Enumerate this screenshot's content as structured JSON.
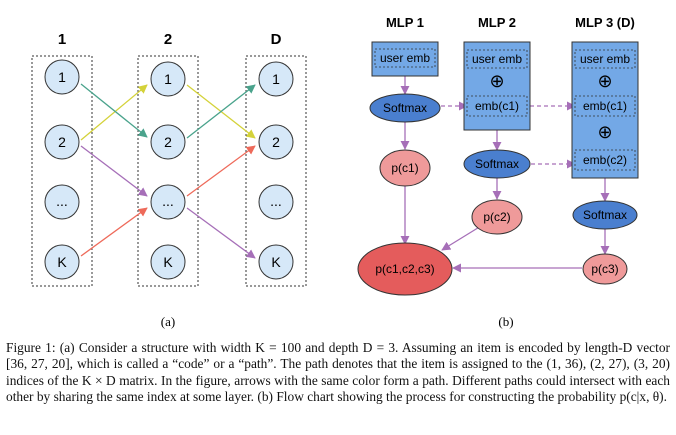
{
  "panel_a": {
    "columns": [
      "1",
      "2",
      "D"
    ],
    "nodes": [
      "1",
      "2",
      "...",
      "K"
    ],
    "sublabel": "(a)"
  },
  "panel_b": {
    "headers": [
      "MLP 1",
      "MLP 2",
      "MLP 3 (D)"
    ],
    "user_emb": "user emb",
    "emb_c1": "emb(c1)",
    "emb_c2": "emb(c2)",
    "oplus": "⊕",
    "softmax": "Softmax",
    "p_c1": "p(c1)",
    "p_c2": "p(c2)",
    "p_c3": "p(c3)",
    "p_joint": "p(c1,c2,c3)",
    "sublabel": "(b)"
  },
  "colors": {
    "node_fill": "#d6e8f8",
    "mlp_fill": "#73a8e6",
    "softmax_fill": "#4a7fcf",
    "prob_fill": "#ef9a9a",
    "joint_fill": "#e45c5c",
    "flow": "#a66fb8",
    "path_yellow": "#d4d23a",
    "path_teal": "#4aa38c",
    "path_purple": "#a66fb8",
    "path_red": "#ee6a5a"
  },
  "caption": {
    "text": "Figure 1: (a) Consider a structure with width K = 100 and depth D = 3. Assuming an item is encoded by length-D vector [36, 27, 20], which is called a “code” or a “path”. The path denotes that the item is assigned to the (1, 36), (2, 27), (3, 20) indices of the K × D matrix. In the figure, arrows with the same color form a path. Different paths could intersect with each other by sharing the same index at some layer. (b) Flow chart showing the process for constructing the probability p(c|x, θ)."
  }
}
